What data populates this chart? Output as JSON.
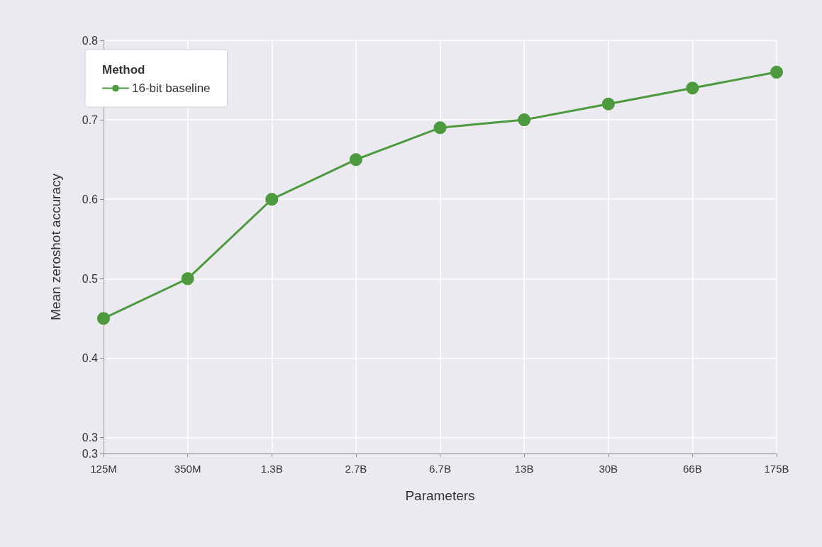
{
  "chart_data": {
    "type": "line",
    "xlabel": "Parameters",
    "ylabel": "Mean zeroshot accuracy",
    "legend_title": "Method",
    "categories": [
      "125M",
      "350M",
      "1.3B",
      "2.7B",
      "6.7B",
      "13B",
      "30B",
      "66B",
      "175B"
    ],
    "series": [
      {
        "name": "16-bit baseline",
        "color": "#4c9a3d",
        "values": [
          0.45,
          0.5,
          0.6,
          0.65,
          0.69,
          0.7,
          0.72,
          0.74,
          0.76
        ]
      }
    ],
    "ylim": [
      0.28,
      0.8
    ],
    "yticks": [
      {
        "value": 0.28,
        "label": "0.3"
      },
      0.3,
      0.4,
      0.5,
      0.6,
      0.7,
      0.8
    ],
    "grid": true,
    "legend": "top left",
    "marker": "circle",
    "line_style": "solid"
  }
}
